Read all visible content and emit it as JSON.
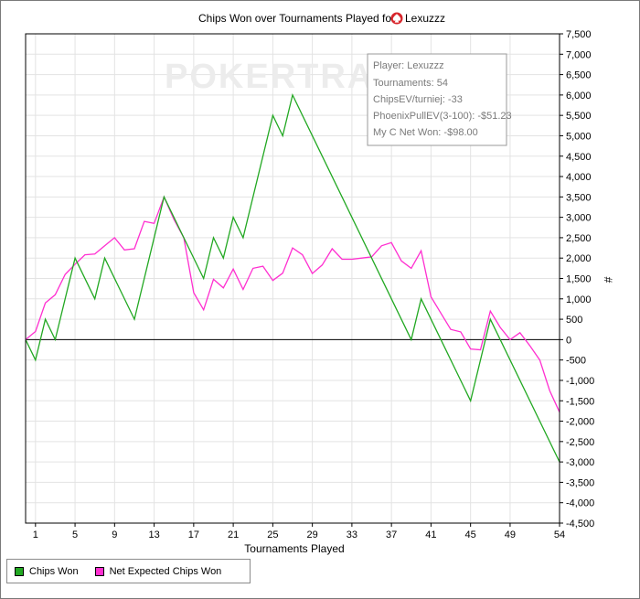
{
  "chart_data": {
    "type": "line",
    "title_prefix": "Chips Won over Tournaments Played for",
    "player": "Lexuzzz",
    "xlabel": "Tournaments Played",
    "ylabel": "#",
    "xlim": [
      0,
      54
    ],
    "ylim": [
      -4500,
      7500
    ],
    "x_ticks": [
      1,
      5,
      9,
      13,
      17,
      21,
      25,
      29,
      33,
      37,
      41,
      45,
      49,
      54
    ],
    "y_ticks": [
      -4500,
      -4000,
      -3500,
      -3000,
      -2500,
      -2000,
      -1500,
      -1000,
      -500,
      0,
      500,
      1000,
      1500,
      2000,
      2500,
      3000,
      3500,
      4000,
      4500,
      5000,
      5500,
      6000,
      6500,
      7000,
      7500
    ],
    "y_tick_labels": [
      "-4,500",
      "-4,000",
      "-3,500",
      "-3,000",
      "-2,500",
      "-2,000",
      "-1,500",
      "-1,000",
      "-500",
      "0",
      "500",
      "1,000",
      "1,500",
      "2,000",
      "2,500",
      "3,000",
      "3,500",
      "4,000",
      "4,500",
      "5,000",
      "5,500",
      "6,000",
      "6,500",
      "7,000",
      "7,500"
    ],
    "grid": true,
    "legend_position": "bottom-left",
    "series": [
      {
        "name": "Chips Won",
        "color": "#22a822",
        "x": [
          0,
          1,
          2,
          3,
          5,
          7,
          8,
          11,
          14,
          16,
          18,
          19,
          20,
          21,
          22,
          25,
          26,
          27,
          39,
          40,
          45,
          47,
          54
        ],
        "y": [
          0,
          -500,
          500,
          0,
          2000,
          1000,
          2000,
          500,
          3500,
          2500,
          1500,
          2500,
          2000,
          3000,
          2500,
          5500,
          5000,
          6000,
          0,
          1000,
          -1500,
          500,
          -3000
        ]
      },
      {
        "name": "Net Expected Chips Won",
        "color": "#ff2fd0",
        "x": [
          0,
          1,
          2,
          3,
          4,
          5,
          6,
          7,
          8,
          9,
          10,
          11,
          12,
          13,
          14,
          15,
          16,
          17,
          18,
          19,
          20,
          21,
          22,
          23,
          24,
          25,
          26,
          27,
          28,
          29,
          30,
          31,
          32,
          33,
          34,
          35,
          36,
          37,
          38,
          39,
          40,
          41,
          42,
          43,
          44,
          45,
          46,
          47,
          48,
          49,
          50,
          51,
          52,
          53,
          54
        ],
        "y": [
          0,
          200,
          900,
          1100,
          1600,
          1850,
          2080,
          2100,
          2300,
          2500,
          2200,
          2230,
          2900,
          2850,
          3500,
          2950,
          2500,
          1150,
          730,
          1480,
          1270,
          1730,
          1230,
          1750,
          1800,
          1450,
          1630,
          2250,
          2080,
          1620,
          1830,
          2230,
          1970,
          1970,
          2000,
          2030,
          2300,
          2380,
          1930,
          1750,
          2180,
          1050,
          650,
          250,
          190,
          -230,
          -250,
          700,
          300,
          0,
          170,
          -150,
          -500,
          -1250,
          -1780
        ]
      }
    ],
    "info_box": [
      "Player: Lexuzzz",
      "Tournaments: 54",
      "ChipsEV/turniej: -33",
      "PhoenixPullEV(3-100): -$51.23",
      "My C Net Won: -$98.00"
    ],
    "watermark": "POKERTRACK"
  }
}
